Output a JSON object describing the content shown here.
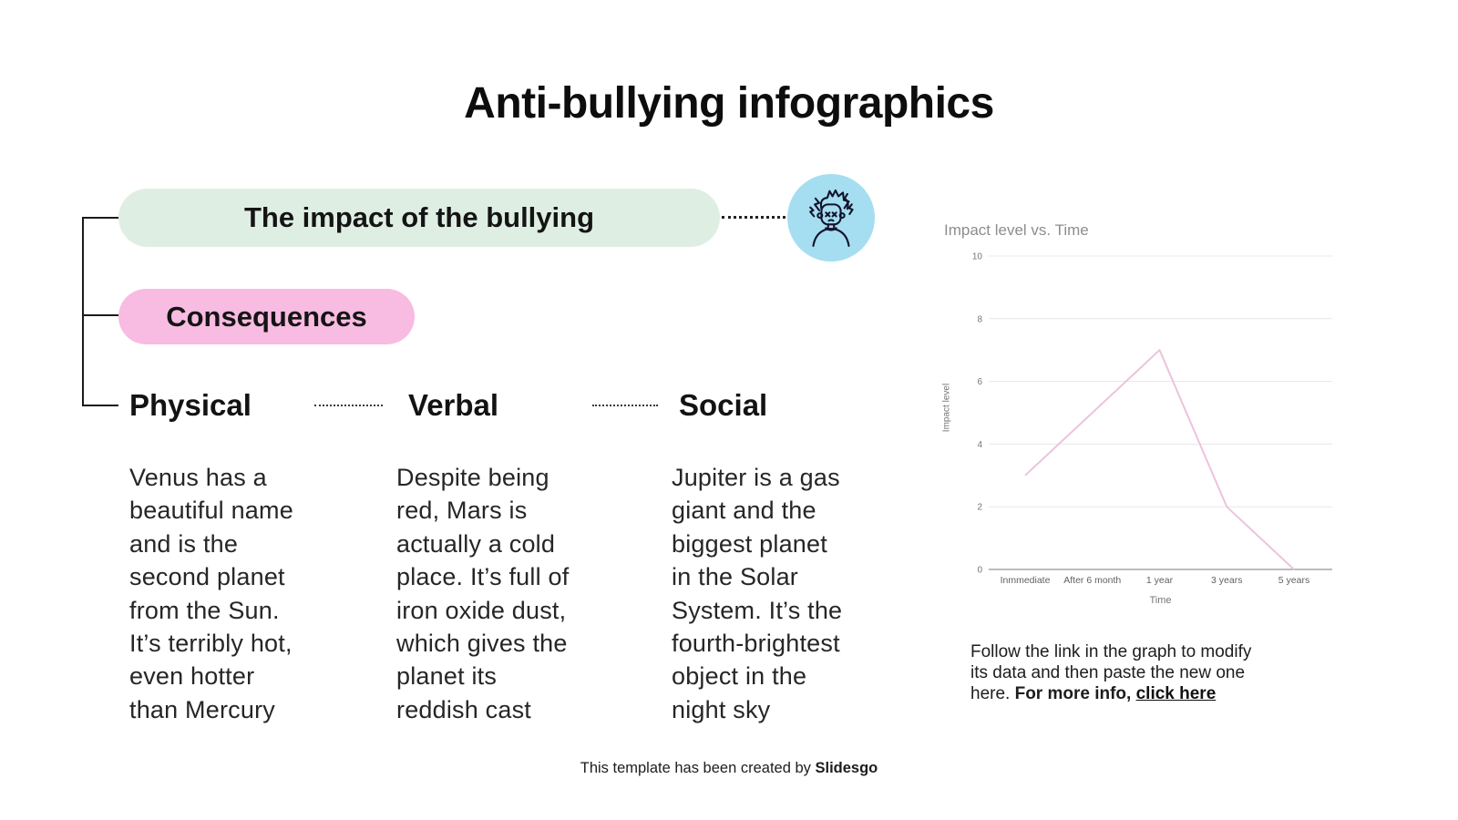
{
  "title": "Anti-bullying infographics",
  "tree": {
    "impact_label": "The impact of the bullying",
    "consequences_label": "Consequences"
  },
  "columns": [
    {
      "heading": "Physical",
      "body": "Venus has a\nbeautiful name\nand is the\nsecond planet\nfrom the Sun.\nIt’s terribly hot,\neven hotter\nthan Mercury"
    },
    {
      "heading": "Verbal",
      "body": "Despite being\nred, Mars is\nactually a cold\nplace. It’s full of\niron oxide dust,\nwhich gives the\nplanet its\nreddish cast"
    },
    {
      "heading": "Social",
      "body": "Jupiter is a gas\ngiant and the\nbiggest planet\nin the Solar\nSystem. It’s the\nfourth-brightest\nobject in the\nnight sky"
    }
  ],
  "avatar": {
    "icon": "stressed-person-icon",
    "bg_color": "#a5ddf1"
  },
  "chart_data": {
    "type": "line",
    "title": "Impact level vs. Time",
    "xlabel": "Time",
    "ylabel": "Impact level",
    "categories": [
      "Inmmediate",
      "After 6 month",
      "1 year",
      "3 years",
      "5 years"
    ],
    "values": [
      3,
      5,
      7,
      2,
      0
    ],
    "ylim": [
      0,
      10
    ],
    "yticks": [
      10,
      8,
      6,
      4,
      2,
      0
    ],
    "grid": true,
    "legend": "none",
    "line_color": "#edc3dd"
  },
  "chart_note": {
    "text": "Follow the link in the graph to modify\nits data and then paste the new one\nhere. ",
    "bold_text": "For more info, ",
    "link_text": "click here"
  },
  "footer": {
    "text": "This template has been created by ",
    "brand": "Slidesgo"
  },
  "colors": {
    "impact_pill_bg": "#dfeee3",
    "consequences_pill_bg": "#f8bbe1",
    "avatar_bg": "#a5ddf1",
    "chart_line": "#edc3dd",
    "chart_grid": "#e7e7e7",
    "chart_axis": "#949494",
    "text": "#1c1c1c"
  }
}
